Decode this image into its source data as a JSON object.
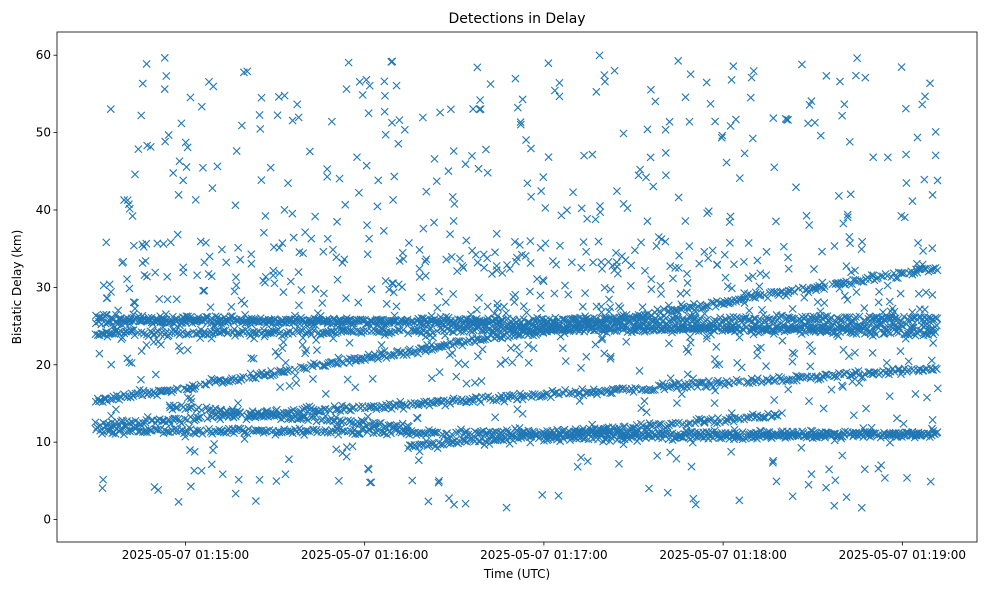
{
  "chart_data": {
    "type": "scatter",
    "title": "Detections in Delay",
    "xlabel": "Time (UTC)",
    "ylabel": "Bistatic Delay (km)",
    "x_unit": "time-of-day",
    "xlim": [
      "01:14:17",
      "01:19:25"
    ],
    "ylim": [
      -2.9,
      63.0
    ],
    "x_ticks": [
      "2025-05-07 01:15:00",
      "2025-05-07 01:16:00",
      "2025-05-07 01:17:00",
      "2025-05-07 01:18:00",
      "2025-05-07 01:19:00"
    ],
    "x_tick_times": [
      "01:15:00",
      "01:16:00",
      "01:17:00",
      "01:18:00",
      "01:19:00"
    ],
    "y_ticks": [
      0,
      10,
      20,
      30,
      40,
      50,
      60
    ],
    "y_tick_labels": [
      "0",
      "10",
      "20",
      "30",
      "40",
      "50",
      "60"
    ],
    "grid": false,
    "legend": "none",
    "marker": "x",
    "color": "#1f77b4",
    "time_span": [
      "01:14:30",
      "01:19:12"
    ],
    "tracks": [
      {
        "start": [
          "01:14:30",
          15.3
        ],
        "end": [
          "01:19:12",
          32.5
        ]
      },
      {
        "start": [
          "01:14:30",
          12.2
        ],
        "end": [
          "01:19:12",
          19.5
        ]
      },
      {
        "start": [
          "01:14:30",
          26.2
        ],
        "end": [
          "01:19:12",
          24.0
        ]
      },
      {
        "start": [
          "01:14:30",
          25.5
        ],
        "end": [
          "01:19:12",
          26.0
        ]
      },
      {
        "start": [
          "01:14:30",
          24.0
        ],
        "end": [
          "01:19:12",
          25.0
        ]
      },
      {
        "start": [
          "01:14:30",
          11.5
        ],
        "end": [
          "01:19:12",
          11.0
        ]
      },
      {
        "start": [
          "01:14:55",
          14.5
        ],
        "end": [
          "01:16:15",
          12.0
        ]
      },
      {
        "start": [
          "01:16:15",
          9.5
        ],
        "end": [
          "01:18:20",
          13.5
        ]
      },
      {
        "start": [
          "01:17:00",
          10.5
        ],
        "end": [
          "01:19:12",
          11.0
        ]
      }
    ],
    "noise": {
      "approx_points": 900,
      "y_range": [
        1.5,
        60
      ],
      "dense_band_y": [
        20,
        36
      ]
    },
    "seed": 20250507
  }
}
